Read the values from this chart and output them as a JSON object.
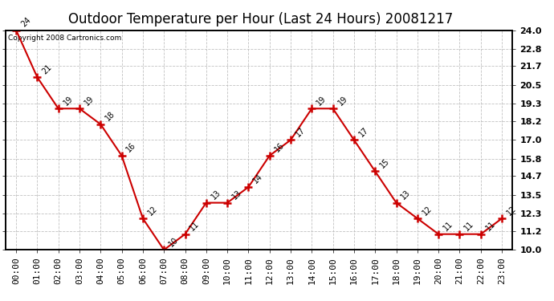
{
  "title": "Outdoor Temperature per Hour (Last 24 Hours) 20081217",
  "copyright_text": "Copyright 2008 Cartronics.com",
  "hours": [
    "00:00",
    "01:00",
    "02:00",
    "03:00",
    "04:00",
    "05:00",
    "06:00",
    "07:00",
    "08:00",
    "09:00",
    "10:00",
    "11:00",
    "12:00",
    "13:00",
    "14:00",
    "15:00",
    "16:00",
    "17:00",
    "18:00",
    "19:00",
    "20:00",
    "21:00",
    "22:00",
    "23:00"
  ],
  "temps": [
    24,
    21,
    19,
    19,
    18,
    16,
    12,
    10,
    11,
    13,
    13,
    14,
    16,
    17,
    19,
    19,
    17,
    15,
    13,
    12,
    11,
    11,
    11,
    12
  ],
  "line_color": "#cc0000",
  "marker_color": "#cc0000",
  "bg_color": "#ffffff",
  "grid_color": "#bbbbbb",
  "ylim_min": 10.0,
  "ylim_max": 24.0,
  "yticks": [
    10.0,
    11.2,
    12.3,
    13.5,
    14.7,
    15.8,
    17.0,
    18.2,
    19.3,
    20.5,
    21.7,
    22.8,
    24.0
  ],
  "title_fontsize": 12,
  "label_fontsize": 8,
  "annotation_fontsize": 7,
  "copyright_fontsize": 6.5
}
